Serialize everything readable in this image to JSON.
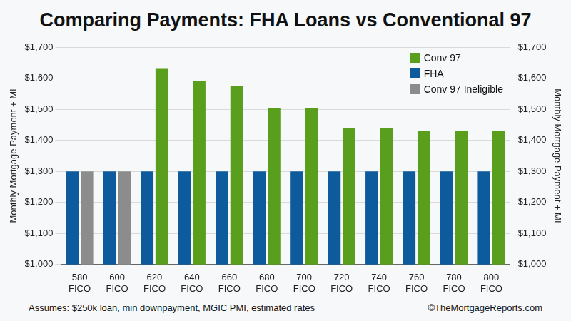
{
  "chart_data": {
    "type": "bar",
    "title": "Comparing Payments: FHA Loans vs Conventional 97",
    "ylabel": "Monthly Mortgage Payment + MI",
    "y2label": "Monthly Mortgage Payment + MI",
    "footnote": "Assumes: $250k loan, min downpayment, MGIC PMI, estimated rates",
    "credit": "©TheMortgageReports.com",
    "categories": [
      "580 FICO",
      "600 FICO",
      "620 FICO",
      "640 FICO",
      "660 FICO",
      "680 FICO",
      "700 FICO",
      "720 FICO",
      "740 FICO",
      "760 FICO",
      "780 FICO",
      "800 FICO"
    ],
    "series": [
      {
        "name": "Conv 97",
        "color": "#5a9e1e",
        "values": [
          null,
          null,
          1630,
          1592,
          1575,
          1503,
          1503,
          1440,
          1440,
          1430,
          1430,
          1430
        ]
      },
      {
        "name": "FHA",
        "color": "#0d5b9c",
        "values": [
          1300,
          1300,
          1300,
          1300,
          1300,
          1300,
          1300,
          1300,
          1300,
          1300,
          1300,
          1300
        ]
      },
      {
        "name": "Conv 97 Ineligible",
        "color": "#8c8c8c",
        "values": [
          1300,
          1300,
          null,
          null,
          null,
          null,
          null,
          null,
          null,
          null,
          null,
          null
        ]
      }
    ],
    "ylim": [
      1000,
      1700
    ],
    "yticks": [
      {
        "value": 1000,
        "label": "$1,000"
      },
      {
        "value": 1100,
        "label": "$1,100"
      },
      {
        "value": 1200,
        "label": "$1,200"
      },
      {
        "value": 1300,
        "label": "$1,300"
      },
      {
        "value": 1400,
        "label": "$1,400"
      },
      {
        "value": 1500,
        "label": "$1,500"
      },
      {
        "value": 1600,
        "label": "$1,600"
      },
      {
        "value": 1700,
        "label": "$1,700"
      }
    ],
    "y2lim": [
      1000,
      1700
    ],
    "y2ticks": [
      {
        "value": 1000,
        "label": "$1,000"
      },
      {
        "value": 1100,
        "label": "$1,100"
      },
      {
        "value": 1200,
        "label": "$1,200"
      },
      {
        "value": 1300,
        "label": "$1,300"
      },
      {
        "value": 1400,
        "label": "$1,400"
      },
      {
        "value": 1500,
        "label": "$1,500"
      },
      {
        "value": 1600,
        "label": "$1,600"
      },
      {
        "value": 1700,
        "label": "$1,700"
      }
    ],
    "grid": true,
    "legend": "upper right"
  }
}
